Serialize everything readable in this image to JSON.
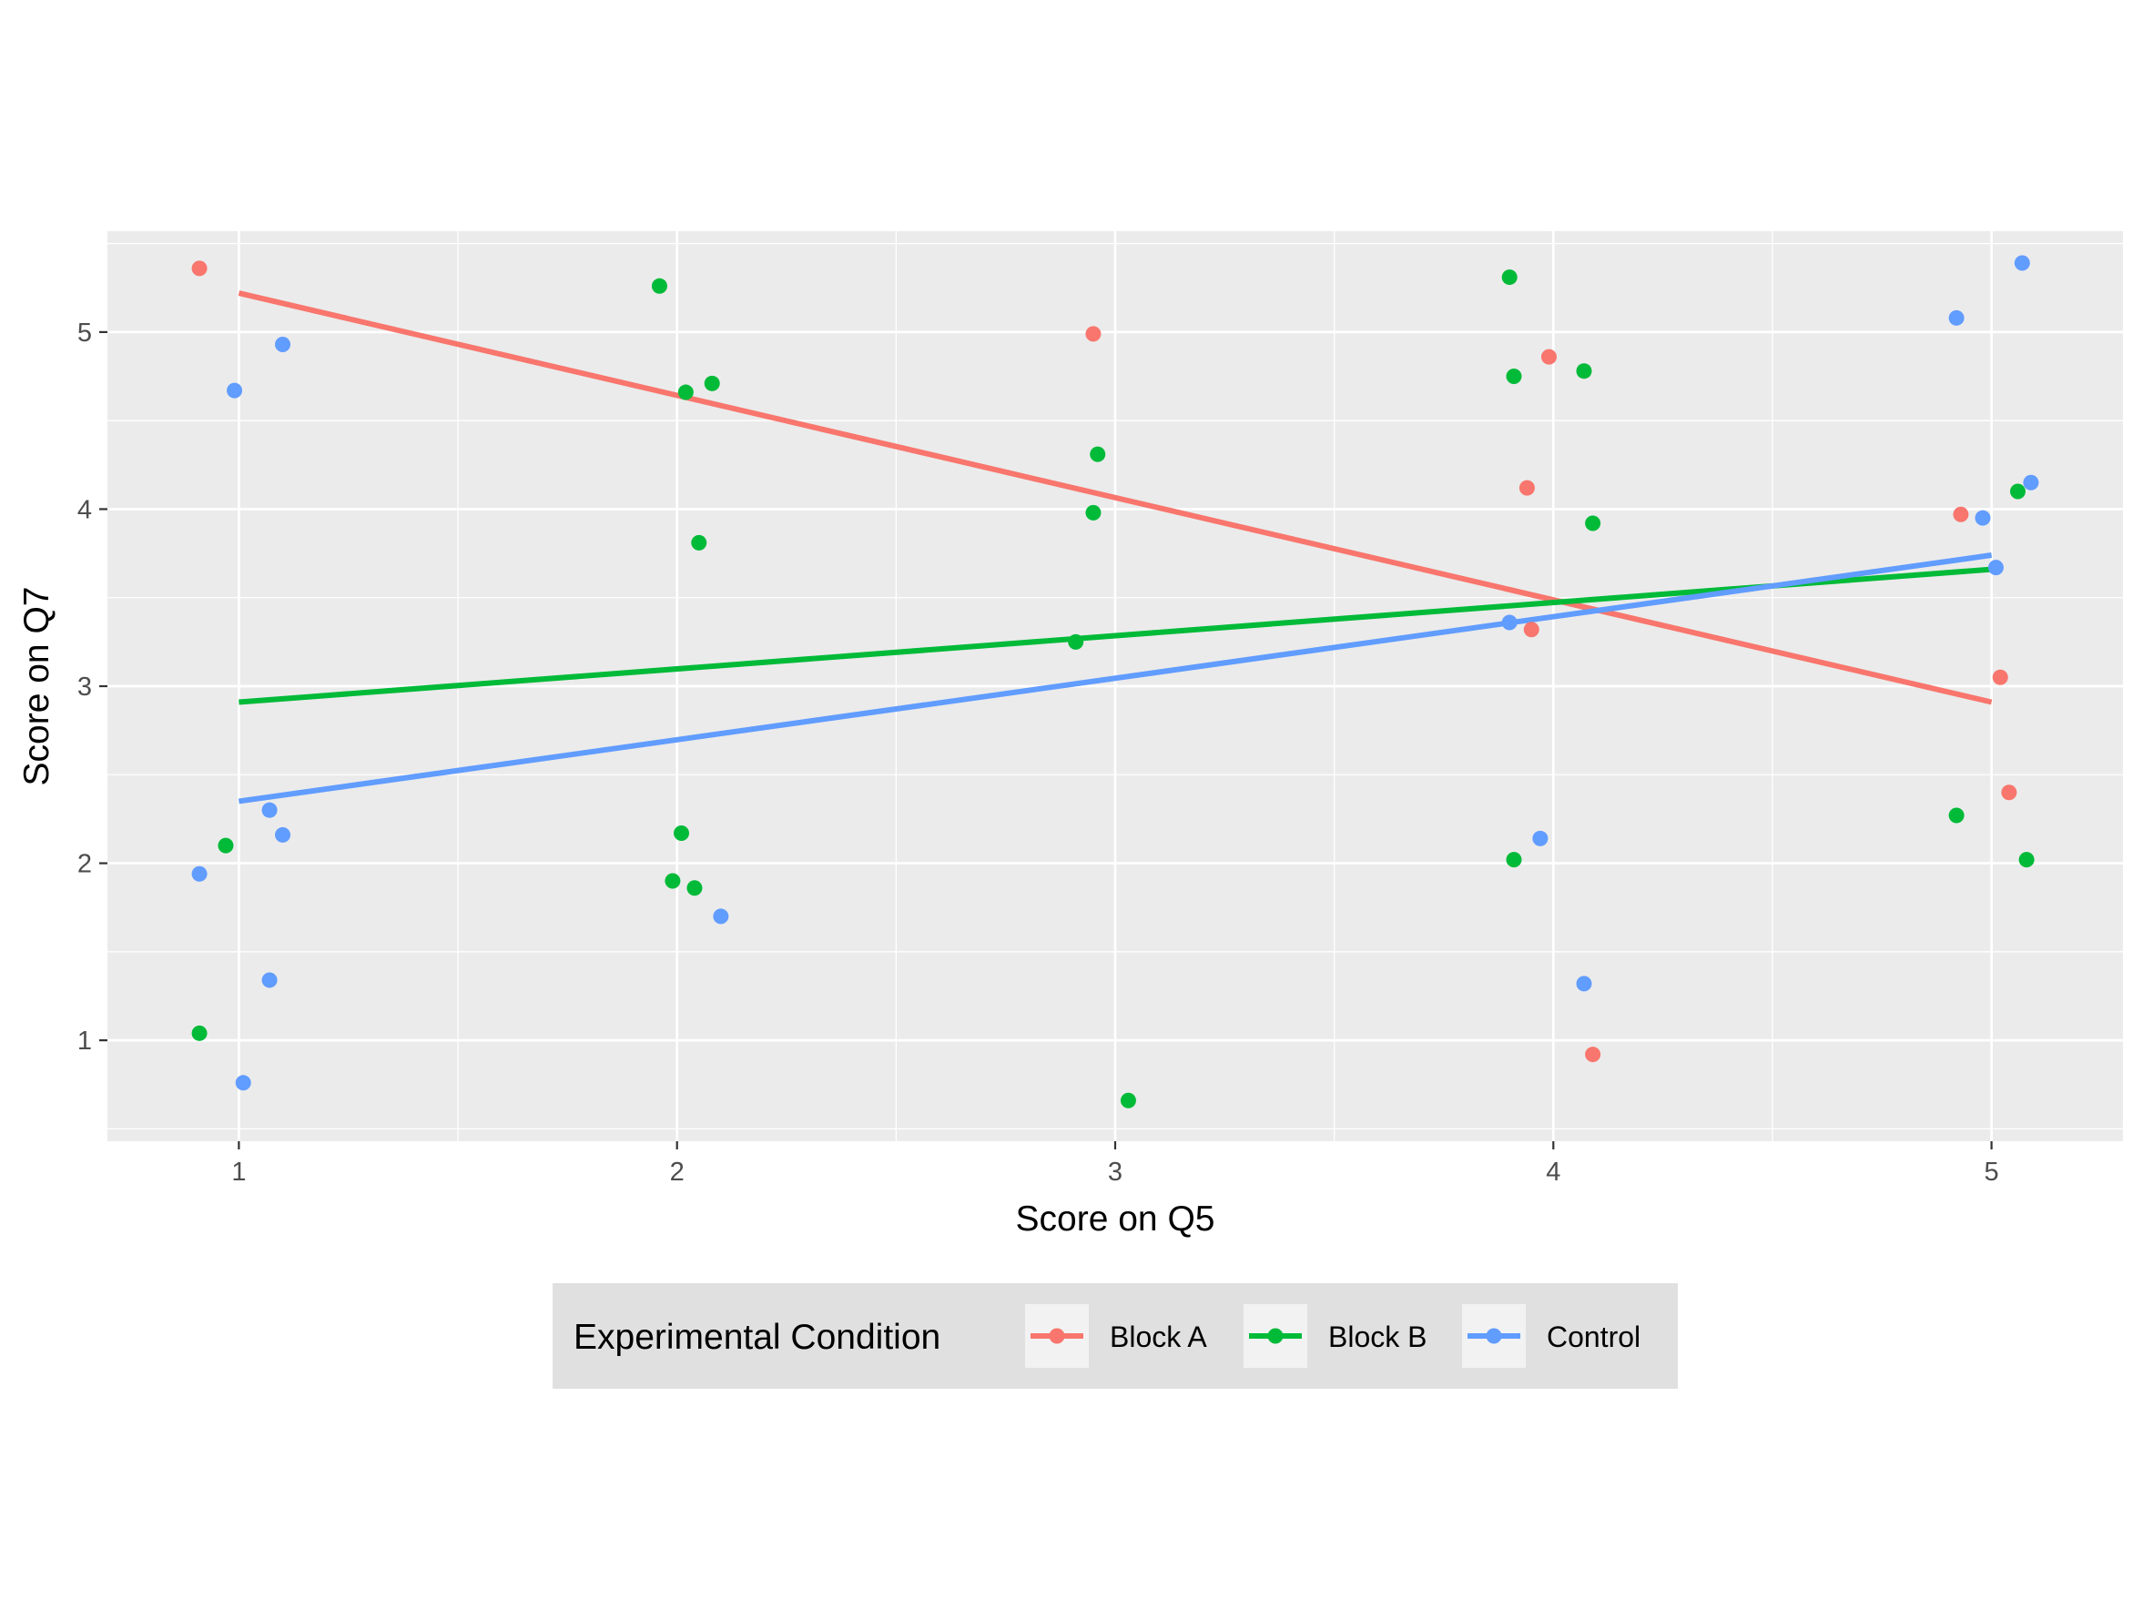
{
  "chart_data": {
    "type": "scatter",
    "xlabel": "Score on Q5",
    "ylabel": "Score on Q7",
    "xlim": [
      0.7,
      5.3
    ],
    "ylim": [
      0.43,
      5.57
    ],
    "x_ticks": [
      1,
      2,
      3,
      4,
      5
    ],
    "y_ticks": [
      1,
      2,
      3,
      4,
      5
    ],
    "x_tick_labels": [
      "1",
      "2",
      "3",
      "4",
      "5"
    ],
    "y_tick_labels": [
      "1",
      "2",
      "3",
      "4",
      "5"
    ],
    "grid": true,
    "legend": {
      "title": "Experimental Condition",
      "position": "bottom",
      "entries": [
        "Block A",
        "Block B",
        "Control"
      ]
    },
    "series": [
      {
        "name": "Block A",
        "color": "#F8766D",
        "points": [
          [
            0.91,
            5.36
          ],
          [
            2.95,
            4.99
          ],
          [
            3.99,
            4.86
          ],
          [
            3.94,
            4.12
          ],
          [
            3.95,
            3.32
          ],
          [
            4.09,
            0.92
          ],
          [
            4.93,
            3.97
          ],
          [
            5.02,
            3.05
          ],
          [
            5.04,
            2.4
          ]
        ],
        "fit": {
          "x": [
            1,
            5
          ],
          "y": [
            5.22,
            2.91
          ]
        }
      },
      {
        "name": "Block B",
        "color": "#00BA38",
        "points": [
          [
            0.91,
            1.04
          ],
          [
            0.97,
            2.1
          ],
          [
            1.96,
            5.26
          ],
          [
            2.02,
            4.66
          ],
          [
            2.08,
            4.71
          ],
          [
            2.05,
            3.81
          ],
          [
            2.01,
            2.17
          ],
          [
            1.99,
            1.9
          ],
          [
            2.04,
            1.86
          ],
          [
            2.96,
            4.31
          ],
          [
            2.95,
            3.98
          ],
          [
            2.91,
            3.25
          ],
          [
            3.03,
            0.66
          ],
          [
            3.9,
            5.31
          ],
          [
            3.91,
            4.75
          ],
          [
            4.07,
            4.78
          ],
          [
            4.09,
            3.92
          ],
          [
            3.91,
            2.02
          ],
          [
            4.92,
            2.27
          ],
          [
            5.06,
            4.1
          ],
          [
            5.08,
            2.02
          ]
        ],
        "fit": {
          "x": [
            1,
            5
          ],
          "y": [
            2.91,
            3.66
          ]
        }
      },
      {
        "name": "Control",
        "color": "#619CFF",
        "points": [
          [
            0.99,
            4.67
          ],
          [
            1.1,
            4.93
          ],
          [
            0.91,
            1.94
          ],
          [
            1.07,
            2.3
          ],
          [
            1.1,
            2.16
          ],
          [
            1.07,
            1.34
          ],
          [
            1.01,
            0.76
          ],
          [
            2.1,
            1.7
          ],
          [
            3.9,
            3.36
          ],
          [
            3.97,
            2.14
          ],
          [
            4.07,
            1.32
          ],
          [
            4.92,
            5.08
          ],
          [
            4.98,
            3.95
          ],
          [
            5.01,
            3.67
          ],
          [
            5.07,
            5.39
          ],
          [
            5.09,
            4.15
          ]
        ],
        "fit": {
          "x": [
            1,
            5
          ],
          "y": [
            2.35,
            3.74
          ]
        }
      }
    ]
  }
}
